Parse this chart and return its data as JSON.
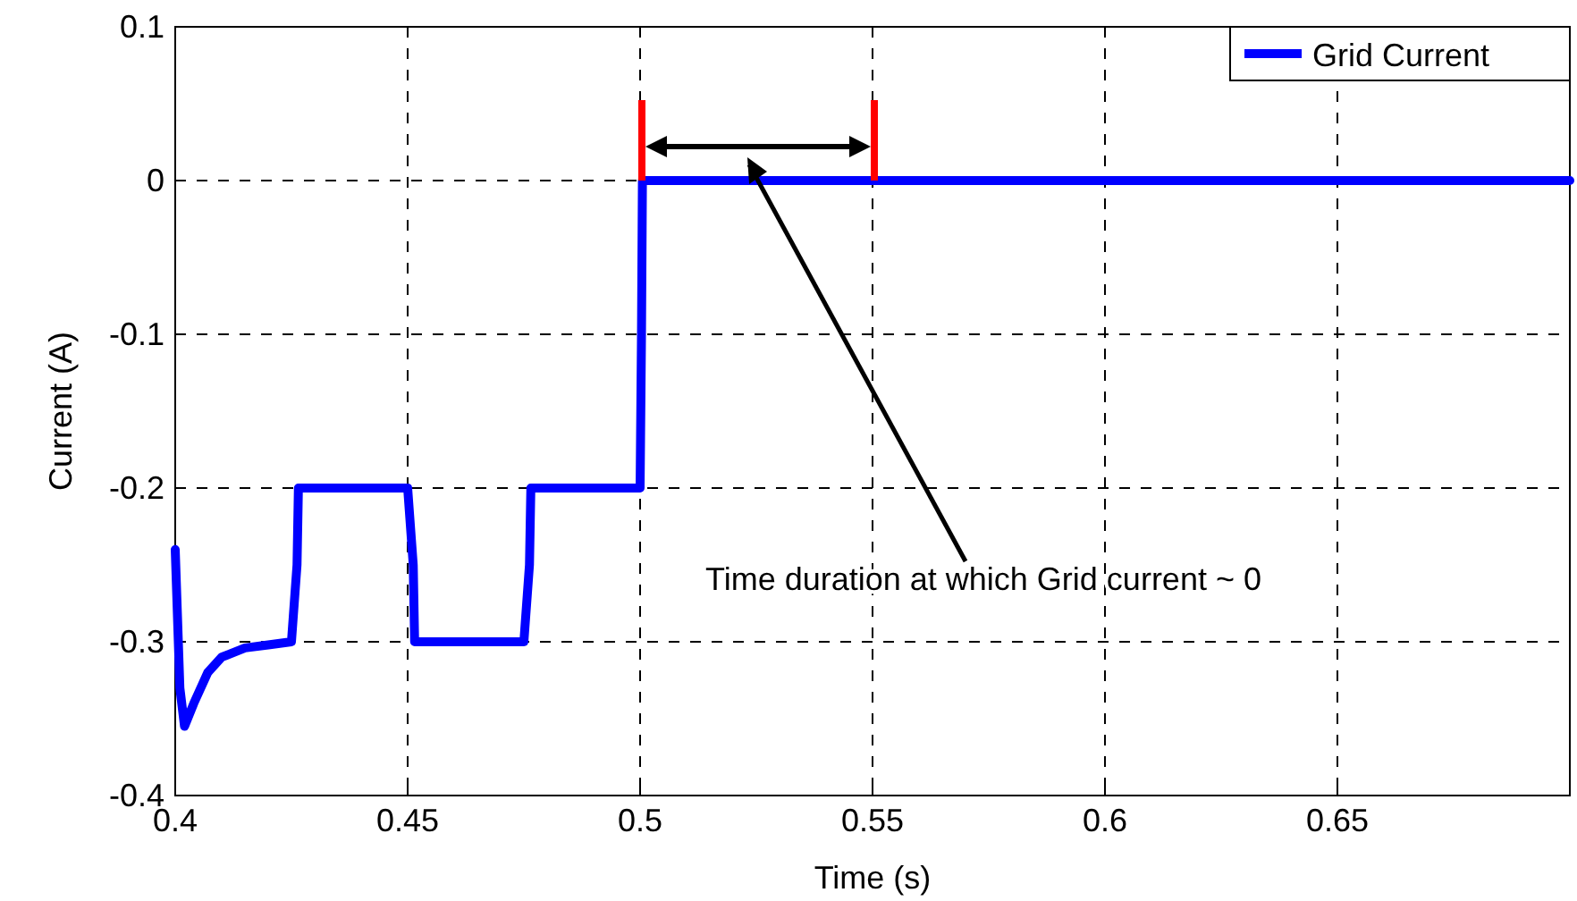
{
  "chart_data": {
    "type": "line",
    "xlabel": "Time (s)",
    "ylabel": "Current (A)",
    "xlim": [
      0.4,
      0.7
    ],
    "xticks": [
      0.4,
      0.45,
      0.5,
      0.55,
      0.6,
      0.65
    ],
    "ylim": [
      -0.4,
      0.1
    ],
    "yticks": [
      -0.4,
      -0.3,
      -0.2,
      -0.1,
      0,
      0.1
    ],
    "grid": true,
    "legend": "top right",
    "marker": "none",
    "line_style": "solid",
    "series": [
      {
        "name": "Grid Current",
        "color": "#0000ff",
        "x": [
          0.4,
          0.401,
          0.402,
          0.404,
          0.407,
          0.41,
          0.415,
          0.42,
          0.425,
          0.4262,
          0.4265,
          0.45,
          0.4512,
          0.4515,
          0.475,
          0.4762,
          0.4765,
          0.5,
          0.5003,
          0.5005,
          0.7
        ],
        "values": [
          -0.24,
          -0.33,
          -0.355,
          -0.34,
          -0.32,
          -0.31,
          -0.304,
          -0.302,
          -0.3,
          -0.25,
          -0.2,
          -0.2,
          -0.25,
          -0.3,
          -0.3,
          -0.25,
          -0.2,
          -0.2,
          -0.1,
          0,
          0
        ]
      }
    ],
    "ref_lines": [
      {
        "axis": "x",
        "value": 0.5,
        "color": "#ff0000"
      },
      {
        "axis": "x",
        "value": 0.55,
        "color": "#ff0000"
      }
    ],
    "annotations": [
      "Time duration at which Grid current ~ 0"
    ]
  }
}
